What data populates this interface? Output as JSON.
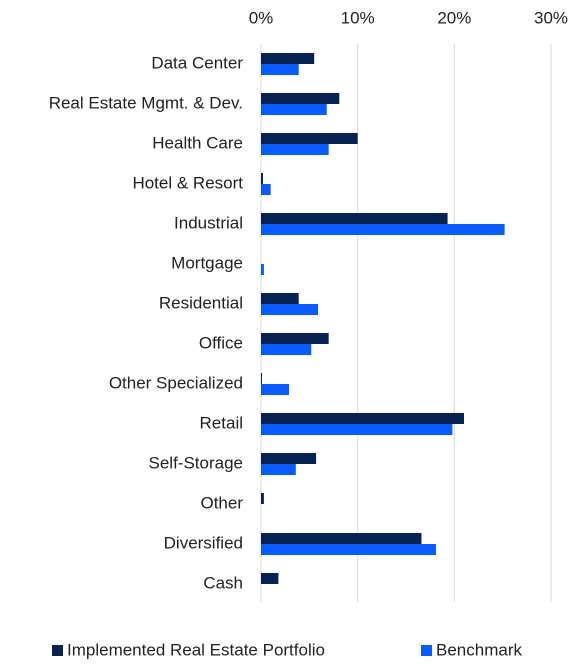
{
  "chart_data": {
    "type": "bar",
    "orientation": "horizontal",
    "categories": [
      "Data Center",
      "Real Estate Mgmt. & Dev.",
      "Health Care",
      "Hotel & Resort",
      "Industrial",
      "Mortgage",
      "Residential",
      "Office",
      "Other Specialized",
      "Retail",
      "Self-Storage",
      "Other",
      "Diversified",
      "Cash"
    ],
    "series": [
      {
        "name": "Implemented Real Estate Portfolio",
        "color": "#0a2251",
        "values": [
          5.5,
          8.1,
          10.0,
          0.2,
          19.3,
          0,
          3.9,
          7.0,
          0.1,
          21.0,
          5.7,
          0.3,
          16.6,
          1.8
        ]
      },
      {
        "name": "Benchmark",
        "color": "#0b5cff",
        "values": [
          3.9,
          6.8,
          7.0,
          1.0,
          25.2,
          0.3,
          5.9,
          5.2,
          2.9,
          19.8,
          3.6,
          0,
          18.1,
          0
        ]
      }
    ],
    "xlim": [
      0,
      30
    ],
    "xticks": [
      {
        "value": 0,
        "label": "0%"
      },
      {
        "value": 10,
        "label": "10%"
      },
      {
        "value": 20,
        "label": "20%"
      },
      {
        "value": 30,
        "label": "30%"
      }
    ],
    "grid": true,
    "legend": "bottom"
  }
}
